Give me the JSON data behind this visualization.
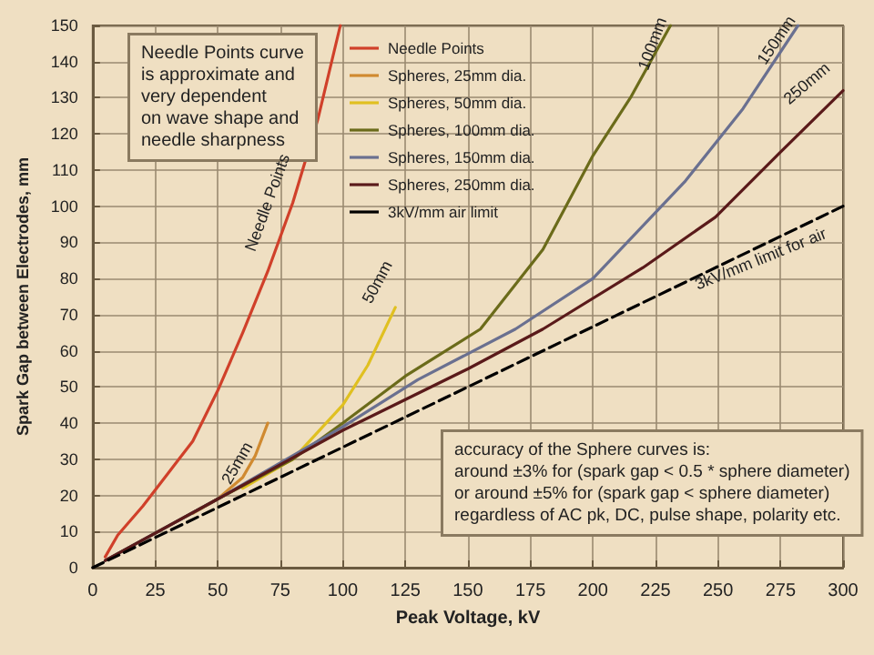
{
  "chart_data": {
    "type": "line",
    "xlabel": "Peak Voltage, kV",
    "ylabel": "Spark Gap between Electrodes, mm",
    "xlim": [
      0,
      300
    ],
    "xticks": [
      0,
      25,
      50,
      75,
      100,
      125,
      150,
      175,
      200,
      225,
      250,
      275,
      300
    ],
    "ylim": [
      0,
      150
    ],
    "yticks": [
      0,
      10,
      20,
      30,
      40,
      50,
      60,
      70,
      80,
      90,
      100,
      110,
      120,
      130,
      140,
      150
    ],
    "grid": true,
    "legend": "top right",
    "marker": "none",
    "series": [
      {
        "name": "Needle Points",
        "color": "#d0402a",
        "x": [
          5,
          10,
          20,
          30,
          40,
          50,
          60,
          70,
          80,
          90,
          99
        ],
        "values": [
          3,
          9,
          17,
          26,
          35,
          49,
          65,
          82,
          101,
          124,
          150
        ]
      },
      {
        "name": "Spheres, 25mm dia.",
        "color": "#d08a30",
        "x": [
          40,
          50,
          60,
          65,
          70
        ],
        "values": [
          15,
          19,
          25,
          31,
          40
        ]
      },
      {
        "name": "Spheres, 50mm dia.",
        "color": "#e0c020",
        "x": [
          60,
          80,
          100,
          110,
          121
        ],
        "values": [
          22,
          30,
          45,
          56,
          72
        ]
      },
      {
        "name": "Spheres, 100mm dia.",
        "color": "#6b6b1a",
        "x": [
          5,
          50,
          80,
          100,
          125,
          155,
          180,
          200,
          215,
          231
        ],
        "values": [
          2,
          19,
          30,
          40,
          53,
          66,
          88,
          114,
          130,
          150
        ]
      },
      {
        "name": "Spheres, 150mm dia.",
        "color": "#6a7090",
        "x": [
          5,
          50,
          100,
          130,
          169,
          200,
          237,
          260,
          282
        ],
        "values": [
          2,
          19,
          39,
          52,
          66,
          80,
          107,
          127,
          150
        ]
      },
      {
        "name": "Spheres, 250mm dia.",
        "color": "#5a1a1a",
        "x": [
          5,
          50,
          100,
          150,
          180,
          220,
          249,
          275,
          300
        ],
        "values": [
          2,
          19,
          38,
          55,
          66,
          83,
          97,
          115,
          132
        ]
      },
      {
        "name": "3kV/mm air limit",
        "color": "#000000",
        "line_style": "dashed",
        "x": [
          0,
          270,
          300
        ],
        "values": [
          0,
          90,
          100
        ]
      }
    ],
    "annotations": [
      "Needle Points curve\nis approximate and\nvery dependent\non wave shape and\nneedle sharpness",
      "accuracy of the Sphere curves is:\naround ±3% for (spark gap < 0.5 * sphere diameter)\nor around ±5% for (spark gap < sphere diameter)\nregardless of AC pk, DC, pulse shape, polarity etc.",
      {
        "text": "Needle Points",
        "x": 80,
        "y": 101
      },
      {
        "text": "25mm",
        "x": 65,
        "y": 31
      },
      {
        "text": "50mm",
        "x": 121,
        "y": 72
      },
      {
        "text": "100mm",
        "x": 231,
        "y": 150
      },
      {
        "text": "150mm",
        "x": 282,
        "y": 150
      },
      {
        "text": "250mm",
        "x": 300,
        "y": 132
      },
      {
        "text": "3kV/mm limit for air",
        "x": 270,
        "y": 90
      }
    ]
  }
}
